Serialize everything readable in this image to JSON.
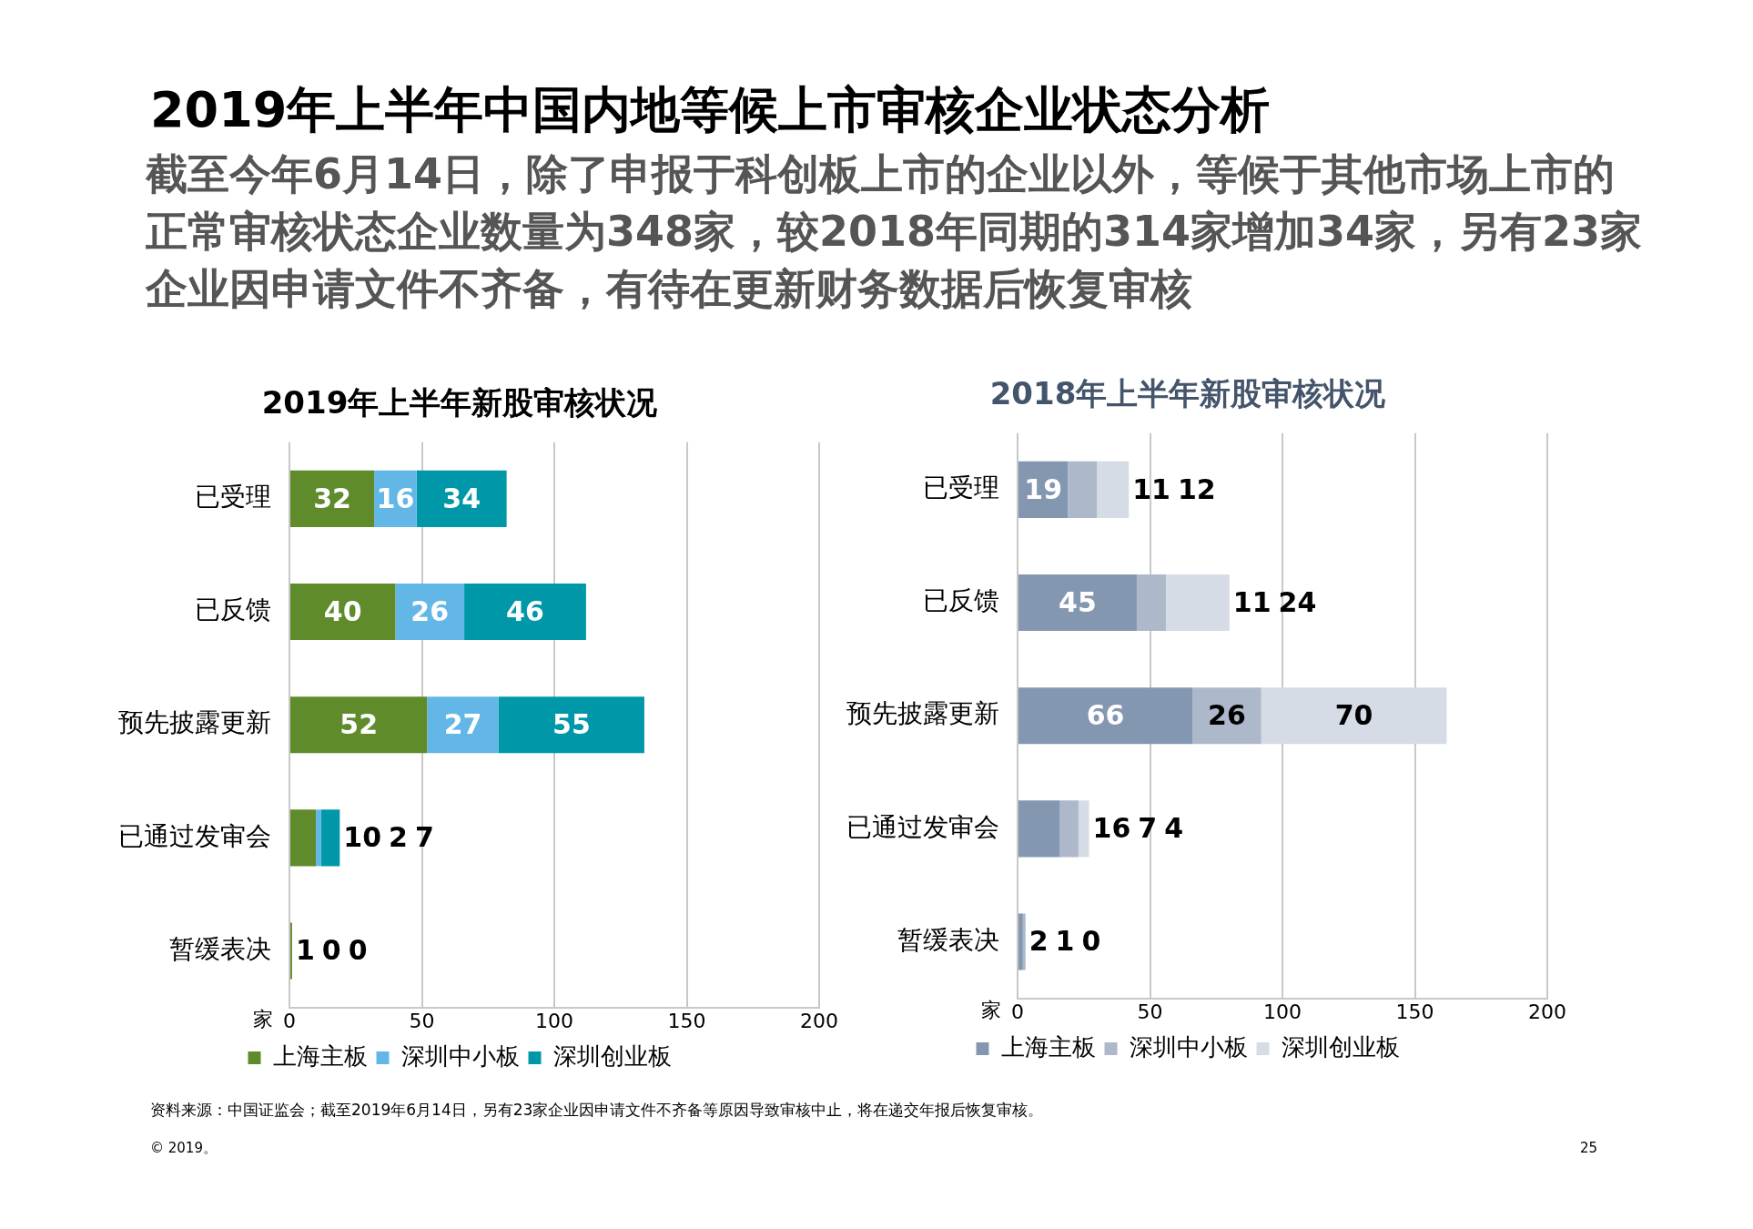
{
  "chart_data": [
    {
      "type": "other",
      "title": "2019年上半年中国内地等候上市审核企业状态分析",
      "subtitle": "截至今年6月14日，除了申报于科创板上市的企业以外，等候于其他市场上市的正常审核状态企业数量为348家，较2018年同期的314家增加34家，另有23家企业因申请文件不齐备，有待在更新财务数据后恢复审核",
      "annotations": [
        "资料来源：中国证监会；截至2019年6月14日，另有23家企业因申请文件不齐备等原因导致审核中止，将在递交年报后恢复审核。",
        "© 2019。",
        "25"
      ]
    },
    {
      "type": "bar",
      "orientation": "horizontal",
      "stacked": true,
      "title": "2019年上半年新股审核状况",
      "xlabel": "家",
      "categories": [
        "已受理",
        "已反馈",
        "预先披露更新",
        "已通过发审会",
        "暂缓表决"
      ],
      "series": [
        {
          "name": "上海主板",
          "color": "#5f8b2b",
          "values": [
            32,
            40,
            52,
            10,
            1
          ]
        },
        {
          "name": "深圳中小板",
          "color": "#63b7e6",
          "values": [
            16,
            26,
            27,
            2,
            0
          ]
        },
        {
          "name": "深圳创业板",
          "color": "#0098a8",
          "values": [
            34,
            46,
            55,
            7,
            0
          ]
        }
      ],
      "xlim": [
        0,
        200
      ],
      "xticks": [
        0,
        50,
        100,
        150,
        200
      ],
      "grid": "x",
      "legend": "bottom",
      "data_labels": true
    },
    {
      "type": "bar",
      "orientation": "horizontal",
      "stacked": true,
      "title": "2018年上半年新股审核状况",
      "xlabel": "家",
      "categories": [
        "已受理",
        "已反馈",
        "预先披露更新",
        "已通过发审会",
        "暂缓表决"
      ],
      "series": [
        {
          "name": "上海主板",
          "color": "#8497b0",
          "values": [
            19,
            45,
            66,
            16,
            2
          ]
        },
        {
          "name": "深圳中小板",
          "color": "#adb9ca",
          "values": [
            11,
            11,
            26,
            7,
            1
          ]
        },
        {
          "name": "深圳创业板",
          "color": "#d6dce5",
          "values": [
            12,
            24,
            70,
            4,
            0
          ]
        }
      ],
      "xlim": [
        0,
        200
      ],
      "xticks": [
        0,
        50,
        100,
        150,
        200
      ],
      "grid": "x",
      "legend": "bottom",
      "data_labels": true
    }
  ]
}
